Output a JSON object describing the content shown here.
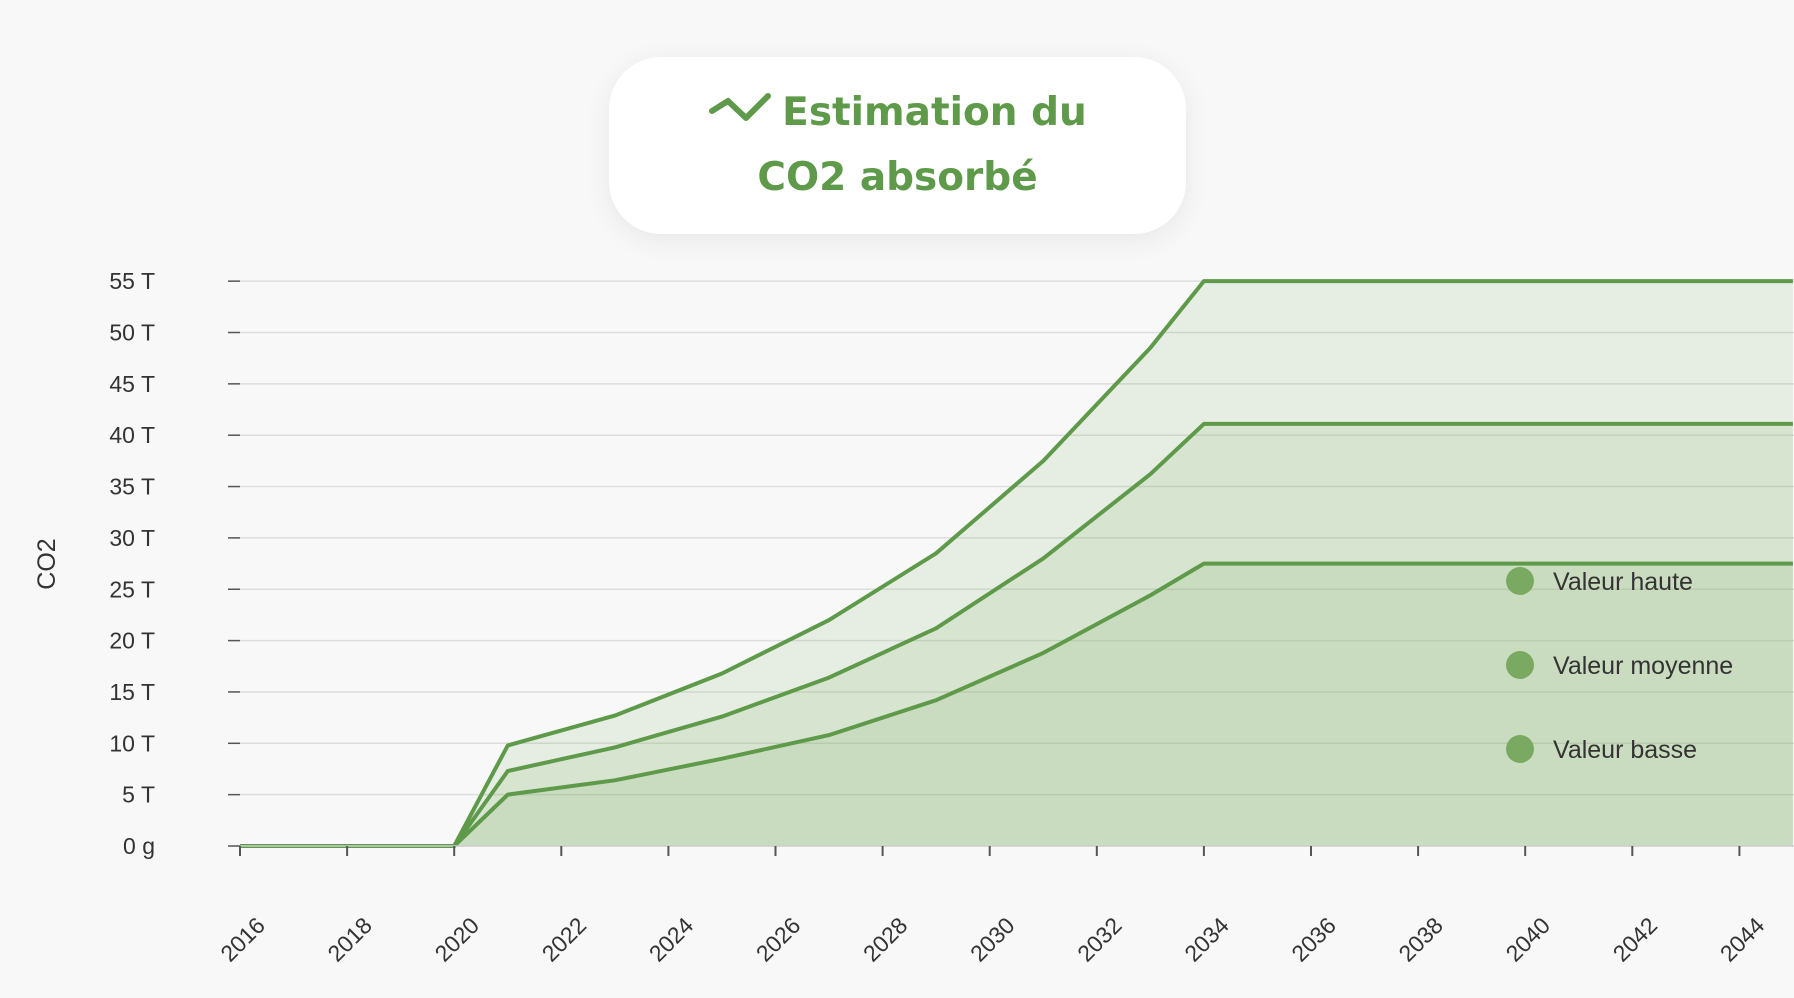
{
  "title": {
    "text": "Estimation du CO2 absorbé",
    "icon": "trend-line-icon"
  },
  "colors": {
    "line": "#5e9a4a",
    "fill": "#86b66e",
    "legend_dot": "#7aaa62",
    "grid": "#dddddd",
    "background": "#f8f8f8"
  },
  "chart_data": {
    "type": "area",
    "ylabel": "CO2",
    "xlabel": "",
    "y_unit": "T",
    "x_tick_labels": [
      "2016",
      "2018",
      "2020",
      "2022",
      "2024",
      "2026",
      "2028",
      "2030",
      "2032",
      "2034",
      "2036",
      "2038",
      "2040",
      "2042",
      "2044"
    ],
    "y_tick_labels": [
      "0 g",
      "5 T",
      "10 T",
      "15 T",
      "20 T",
      "25 T",
      "30 T",
      "35 T",
      "40 T",
      "45 T",
      "50 T",
      "55 T"
    ],
    "y_tick_values": [
      0,
      5,
      10,
      15,
      20,
      25,
      30,
      35,
      40,
      45,
      50,
      55
    ],
    "xlim": [
      2016,
      2045
    ],
    "ylim": [
      0,
      55
    ],
    "grid": "horizontal",
    "legend_position": "right",
    "x": [
      2016,
      2020,
      2021,
      2023,
      2025,
      2027,
      2029,
      2031,
      2033,
      2034,
      2045
    ],
    "series": [
      {
        "name": "Valeur haute",
        "values": [
          0,
          0,
          9.8,
          12.7,
          16.8,
          22,
          28.5,
          37.5,
          48.5,
          55,
          55
        ]
      },
      {
        "name": "Valeur moyenne",
        "values": [
          0,
          0,
          7.3,
          9.6,
          12.6,
          16.4,
          21.2,
          28,
          36.2,
          41.1,
          41.1
        ]
      },
      {
        "name": "Valeur basse",
        "values": [
          0,
          0,
          5,
          6.4,
          8.5,
          10.8,
          14.2,
          18.8,
          24.4,
          27.5,
          27.5
        ]
      }
    ]
  }
}
